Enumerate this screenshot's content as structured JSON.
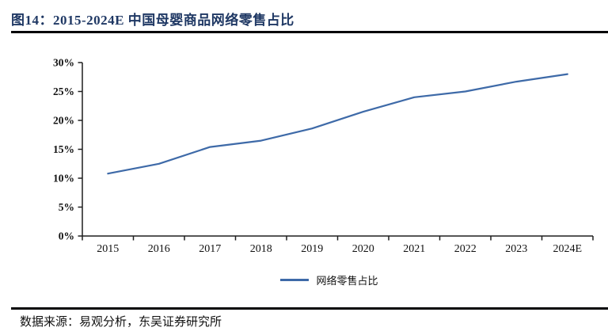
{
  "figure": {
    "title": "图14：2015-2024E 中国母婴商品网络零售占比",
    "source": "数据来源：易观分析，东吴证券研究所"
  },
  "colors": {
    "title_text": "#1f3864",
    "series_line": "#3e6aa8",
    "axis": "#1f1f1f",
    "rule": "#050508",
    "label_text": "#111111"
  },
  "chart_data": {
    "type": "line",
    "title": "2015-2024E 中国母婴商品网络零售占比",
    "categories": [
      "2015",
      "2016",
      "2017",
      "2018",
      "2019",
      "2020",
      "2021",
      "2022",
      "2023",
      "2024E"
    ],
    "series": [
      {
        "name": "网络零售占比",
        "values": [
          10.8,
          12.5,
          15.4,
          16.5,
          18.6,
          21.5,
          24.0,
          25.0,
          26.7,
          28.0
        ]
      }
    ],
    "xlabel": "",
    "ylabel": "",
    "ylim": [
      0,
      30
    ],
    "y_tick_step": 5,
    "y_tick_labels": [
      "0%",
      "5%",
      "10%",
      "15%",
      "20%",
      "25%",
      "30%"
    ],
    "grid": false,
    "legend_position": "bottom-center"
  }
}
